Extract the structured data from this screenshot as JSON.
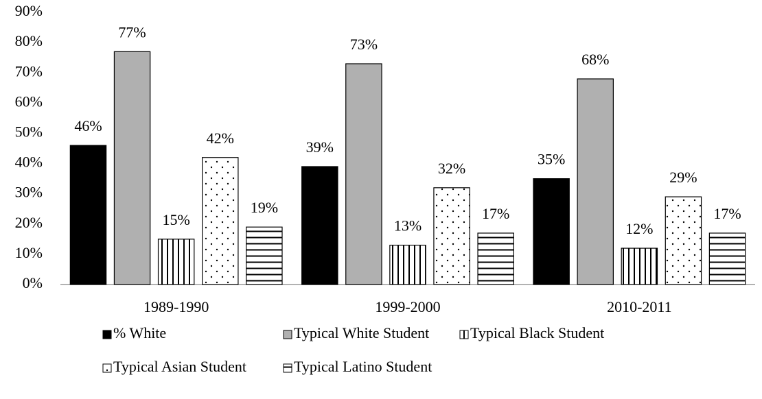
{
  "chart_data": {
    "type": "bar",
    "categories": [
      "1989-1990",
      "1999-2000",
      "2010-2011"
    ],
    "series": [
      {
        "name": "% White",
        "color": "#000000",
        "pattern": "solid",
        "values": [
          46,
          39,
          35
        ],
        "value_labels": [
          "46%",
          "39%",
          "35%"
        ]
      },
      {
        "name": "Typical White Student",
        "color": "#b0b0b0",
        "pattern": "solid",
        "values": [
          77,
          73,
          68
        ],
        "value_labels": [
          "77%",
          "73%",
          "68%"
        ]
      },
      {
        "name": "Typical Black Student",
        "color": "#ffffff",
        "pattern": "vertical",
        "values": [
          15,
          13,
          12
        ],
        "value_labels": [
          "15%",
          "13%",
          "12%"
        ]
      },
      {
        "name": "Typical Asian Student",
        "color": "#ffffff",
        "pattern": "dots",
        "values": [
          42,
          32,
          29
        ],
        "value_labels": [
          "42%",
          "32%",
          "29%"
        ]
      },
      {
        "name": "Typical Latino Student",
        "color": "#ffffff",
        "pattern": "horizontal",
        "values": [
          19,
          17,
          17
        ],
        "value_labels": [
          "19%",
          "17%",
          "17%"
        ]
      }
    ],
    "ylim": [
      0,
      90
    ],
    "yticks": [
      {
        "value": 0,
        "label": "0%"
      },
      {
        "value": 10,
        "label": "10%"
      },
      {
        "value": 20,
        "label": "20%"
      },
      {
        "value": 30,
        "label": "30%"
      },
      {
        "value": 40,
        "label": "40%"
      },
      {
        "value": 50,
        "label": "50%"
      },
      {
        "value": 60,
        "label": "60%"
      },
      {
        "value": 70,
        "label": "70%"
      },
      {
        "value": 80,
        "label": "80%"
      },
      {
        "value": 90,
        "label": "90%"
      }
    ],
    "grid": false,
    "legend": "bottom"
  }
}
